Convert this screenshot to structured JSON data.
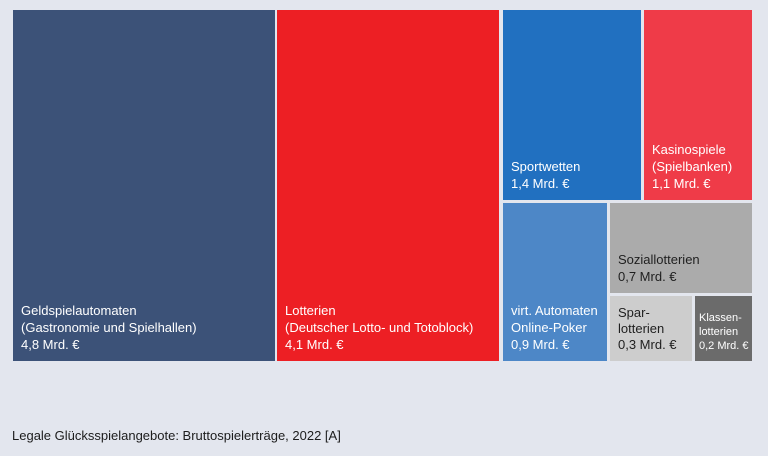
{
  "caption": "Legale Glücksspielangebote: Bruttospielerträge, 2022 [A]",
  "chart_data": {
    "type": "treemap",
    "unit": "Mrd. €",
    "items": [
      {
        "id": "geldspielautomaten",
        "label": "Geldspielautomaten\n(Gastronomie und Spielhallen)\n4,8 Mrd. €",
        "value": 4.8,
        "color": "#3c5278",
        "text_color": "#ffffff"
      },
      {
        "id": "lotterien",
        "label": "Lotterien\n(Deutscher Lotto- und Totoblock)\n4,1 Mrd. €",
        "value": 4.1,
        "color": "#ed1f24",
        "text_color": "#ffffff"
      },
      {
        "id": "sportwetten",
        "label": "Sportwetten\n1,4 Mrd. €",
        "value": 1.4,
        "color": "#2170c0",
        "text_color": "#ffffff"
      },
      {
        "id": "kasinospiele",
        "label": "Kasinospiele\n(Spielbanken)\n1,1 Mrd. €",
        "value": 1.1,
        "color": "#ef3b48",
        "text_color": "#ffffff"
      },
      {
        "id": "virt-automaten",
        "label": "virt. Automaten\nOnline-Poker\n0,9 Mrd. €",
        "value": 0.9,
        "color": "#4d87c7",
        "text_color": "#ffffff"
      },
      {
        "id": "soziallotterien",
        "label": "Soziallotterien\n0,7 Mrd. €",
        "value": 0.7,
        "color": "#ababab",
        "text_color": "#1f1f1f"
      },
      {
        "id": "sparlotterien",
        "label": "Spar-\nlotterien\n0,3 Mrd. €",
        "value": 0.3,
        "color": "#cdcdcd",
        "text_color": "#1f1f1f"
      },
      {
        "id": "klassenlotterien",
        "label": "Klassen-\nlotterien\n0,2 Mrd. €",
        "value": 0.2,
        "color": "#6b6b6b",
        "text_color": "#ffffff"
      }
    ]
  }
}
